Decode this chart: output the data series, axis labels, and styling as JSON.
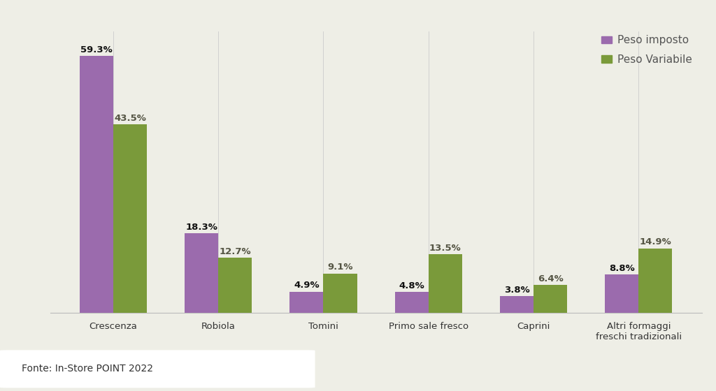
{
  "categories": [
    "Crescenza",
    "Robiola",
    "Tomini",
    "Primo sale fresco",
    "Caprini",
    "Altri formaggi\nfreschi tradizionali"
  ],
  "peso_imposto": [
    59.3,
    18.3,
    4.9,
    4.8,
    3.8,
    8.8
  ],
  "peso_variabile": [
    43.5,
    12.7,
    9.1,
    13.5,
    6.4,
    14.9
  ],
  "color_imposto": "#9B6BAD",
  "color_variabile": "#7A9A3A",
  "background_chart": "#EEEEE6",
  "background_footer": "#4A6741",
  "background_white_footer": "#FFFFFF",
  "label_imposto": "Peso imposto",
  "label_variabile": "Peso Variabile",
  "footer_text": "Fonte: In-Store POINT 2022",
  "ylim": [
    0,
    65
  ],
  "bar_width": 0.32,
  "left_border_color": "#4A6741",
  "label_color_imposto": "#111111",
  "label_color_variabile": "#555544"
}
